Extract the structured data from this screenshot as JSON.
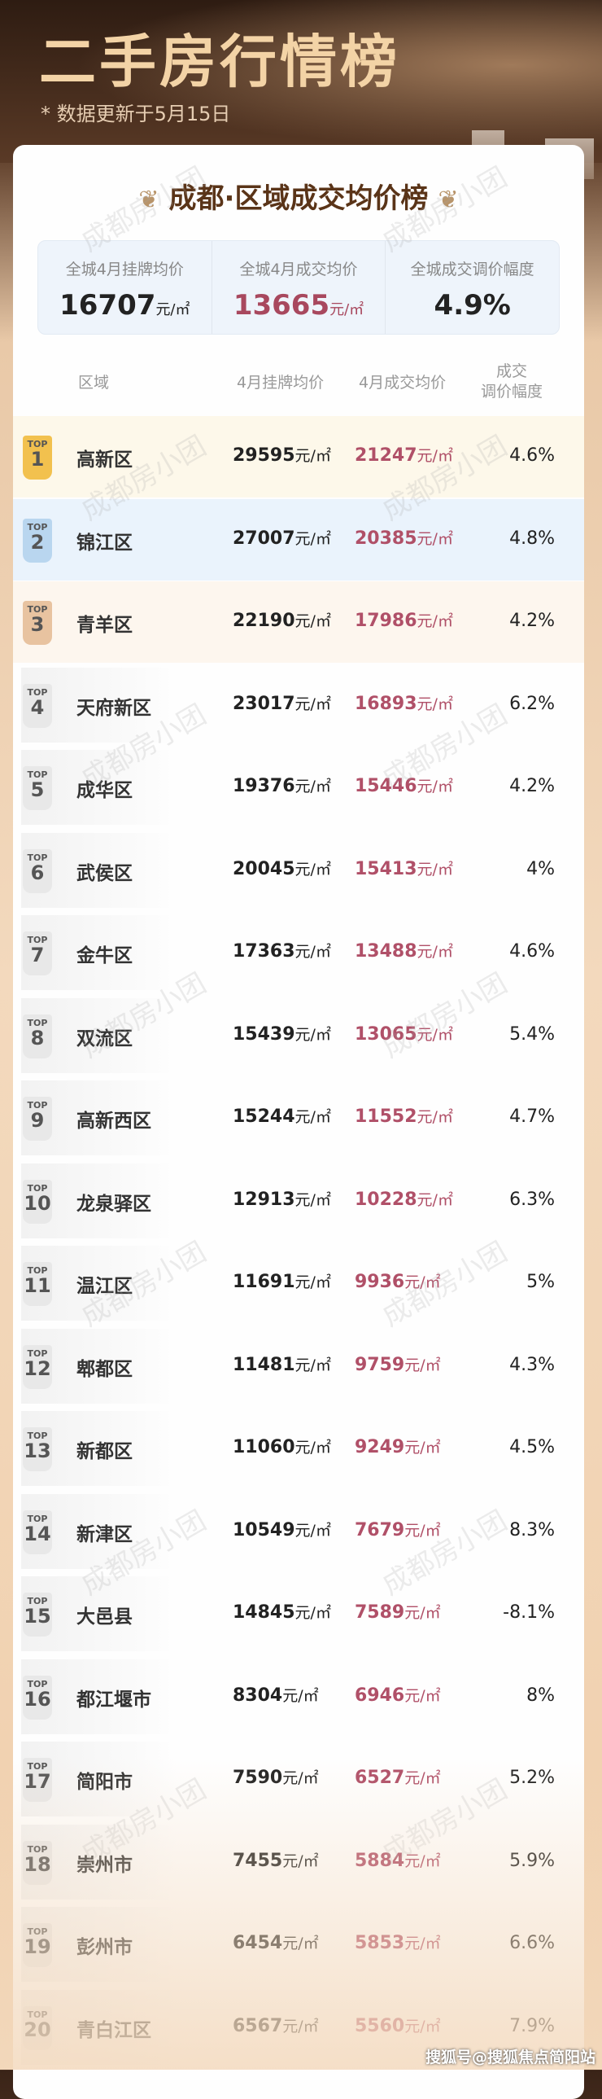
{
  "header": {
    "title": "二手房行情榜",
    "update_note": "* 数据更新于5月15日"
  },
  "card": {
    "title": "成都·区域成交均价榜"
  },
  "summary": [
    {
      "label": "全城4月挂牌均价",
      "value": "16707",
      "unit": "元/㎡"
    },
    {
      "label": "全城4月成交均价",
      "value": "13665",
      "unit": "元/㎡"
    },
    {
      "label": "全城成交调价幅度",
      "value": "4.9%",
      "unit": ""
    }
  ],
  "columns": {
    "district": "区域",
    "listing": "4月挂牌均价",
    "deal": "4月成交均价",
    "change_line1": "成交",
    "change_line2": "调价幅度"
  },
  "unit": "元/㎡",
  "top_label": "TOP",
  "rows": [
    {
      "rank": "1",
      "name": "高新区",
      "listing": "29595",
      "deal": "21247",
      "change": "4.6%"
    },
    {
      "rank": "2",
      "name": "锦江区",
      "listing": "27007",
      "deal": "20385",
      "change": "4.8%"
    },
    {
      "rank": "3",
      "name": "青羊区",
      "listing": "22190",
      "deal": "17986",
      "change": "4.2%"
    },
    {
      "rank": "4",
      "name": "天府新区",
      "listing": "23017",
      "deal": "16893",
      "change": "6.2%"
    },
    {
      "rank": "5",
      "name": "成华区",
      "listing": "19376",
      "deal": "15446",
      "change": "4.2%"
    },
    {
      "rank": "6",
      "name": "武侯区",
      "listing": "20045",
      "deal": "15413",
      "change": "4%"
    },
    {
      "rank": "7",
      "name": "金牛区",
      "listing": "17363",
      "deal": "13488",
      "change": "4.6%"
    },
    {
      "rank": "8",
      "name": "双流区",
      "listing": "15439",
      "deal": "13065",
      "change": "5.4%"
    },
    {
      "rank": "9",
      "name": "高新西区",
      "listing": "15244",
      "deal": "11552",
      "change": "4.7%"
    },
    {
      "rank": "10",
      "name": "龙泉驿区",
      "listing": "12913",
      "deal": "10228",
      "change": "6.3%"
    },
    {
      "rank": "11",
      "name": "温江区",
      "listing": "11691",
      "deal": "9936",
      "change": "5%"
    },
    {
      "rank": "12",
      "name": "郫都区",
      "listing": "11481",
      "deal": "9759",
      "change": "4.3%"
    },
    {
      "rank": "13",
      "name": "新都区",
      "listing": "11060",
      "deal": "9249",
      "change": "4.5%"
    },
    {
      "rank": "14",
      "name": "新津区",
      "listing": "10549",
      "deal": "7679",
      "change": "8.3%"
    },
    {
      "rank": "15",
      "name": "大邑县",
      "listing": "14845",
      "deal": "7589",
      "change": "-8.1%"
    },
    {
      "rank": "16",
      "name": "都江堰市",
      "listing": "8304",
      "deal": "6946",
      "change": "8%"
    },
    {
      "rank": "17",
      "name": "简阳市",
      "listing": "7590",
      "deal": "6527",
      "change": "5.2%"
    },
    {
      "rank": "18",
      "name": "崇州市",
      "listing": "7455",
      "deal": "5884",
      "change": "5.9%"
    },
    {
      "rank": "19",
      "name": "彭州市",
      "listing": "6454",
      "deal": "5853",
      "change": "6.6%"
    },
    {
      "rank": "20",
      "name": "青白江区",
      "listing": "6567",
      "deal": "5560",
      "change": "7.9%"
    }
  ],
  "colors": {
    "gold": "#f2c14e",
    "silver": "#b9d6ef",
    "bronze": "#e8c3a0",
    "deal_price": "#b05068",
    "row1_bg": "#fdf8ea",
    "row2_bg": "#eaf3fc",
    "row3_bg": "#fdf6ee"
  },
  "watermark": "成都房小团",
  "footer": "搜狐号@搜狐焦点简阳站"
}
